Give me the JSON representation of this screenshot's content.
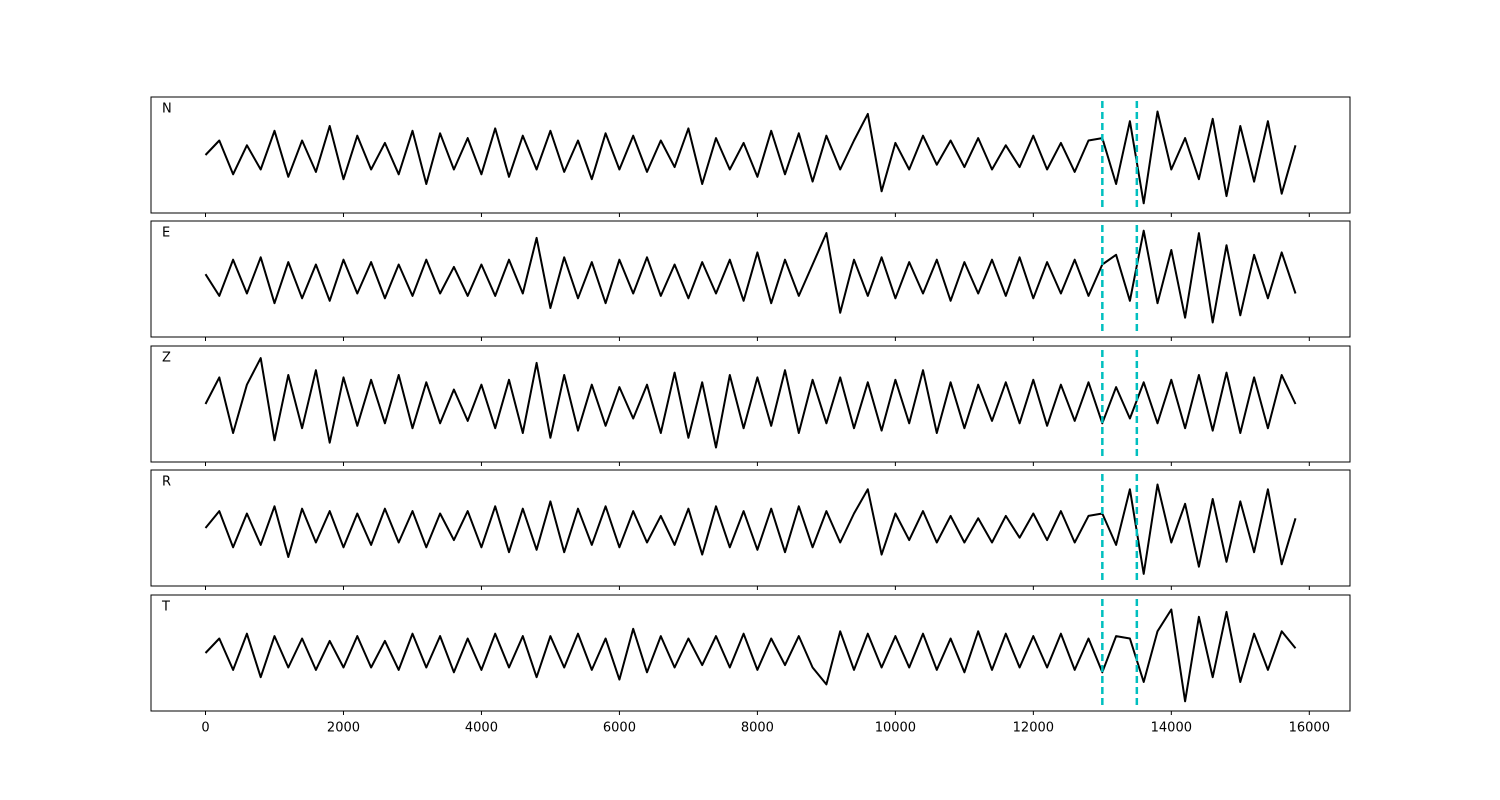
{
  "chart_data": {
    "type": "line",
    "x": [
      0,
      200,
      400,
      600,
      800,
      1000,
      1200,
      1400,
      1600,
      1800,
      2000,
      2200,
      2400,
      2600,
      2800,
      3000,
      3200,
      3400,
      3600,
      3800,
      4000,
      4200,
      4400,
      4600,
      4800,
      5000,
      5200,
      5400,
      5600,
      5800,
      6000,
      6200,
      6400,
      6600,
      6800,
      7000,
      7200,
      7400,
      7600,
      7800,
      8000,
      8200,
      8400,
      8600,
      8800,
      9000,
      9200,
      9400,
      9600,
      9800,
      10000,
      10200,
      10400,
      10600,
      10800,
      11000,
      11200,
      11400,
      11600,
      11800,
      12000,
      12200,
      12400,
      12600,
      12800,
      13000,
      13200,
      13400,
      13600,
      13800,
      14000,
      14200,
      14400,
      14600,
      14800,
      15000,
      15200,
      15400,
      15600,
      15800
    ],
    "series": [
      {
        "name": "N",
        "color": "#000000",
        "values": [
          0.0,
          0.3,
          -0.4,
          0.2,
          -0.3,
          0.5,
          -0.45,
          0.3,
          -0.35,
          0.6,
          -0.5,
          0.4,
          -0.3,
          0.25,
          -0.4,
          0.5,
          -0.6,
          0.45,
          -0.3,
          0.35,
          -0.4,
          0.55,
          -0.45,
          0.4,
          -0.3,
          0.5,
          -0.35,
          0.3,
          -0.5,
          0.45,
          -0.3,
          0.4,
          -0.35,
          0.3,
          -0.25,
          0.55,
          -0.6,
          0.35,
          -0.3,
          0.25,
          -0.45,
          0.5,
          -0.4,
          0.45,
          -0.55,
          0.4,
          -0.3,
          0.3,
          0.85,
          -0.75,
          0.25,
          -0.3,
          0.4,
          -0.2,
          0.3,
          -0.25,
          0.35,
          -0.3,
          0.2,
          -0.25,
          0.4,
          -0.3,
          0.25,
          -0.35,
          0.3,
          0.35,
          -0.6,
          0.7,
          -1.0,
          0.9,
          -0.3,
          0.35,
          -0.5,
          0.75,
          -0.85,
          0.6,
          -0.55,
          0.7,
          -0.8,
          0.2
        ]
      },
      {
        "name": "E",
        "color": "#000000",
        "values": [
          0.1,
          -0.35,
          0.4,
          -0.3,
          0.45,
          -0.5,
          0.35,
          -0.4,
          0.3,
          -0.45,
          0.4,
          -0.3,
          0.35,
          -0.4,
          0.3,
          -0.35,
          0.4,
          -0.3,
          0.25,
          -0.35,
          0.3,
          -0.35,
          0.4,
          -0.3,
          0.85,
          -0.6,
          0.45,
          -0.4,
          0.35,
          -0.5,
          0.4,
          -0.3,
          0.45,
          -0.35,
          0.3,
          -0.4,
          0.35,
          -0.3,
          0.4,
          -0.45,
          0.55,
          -0.5,
          0.4,
          -0.35,
          0.3,
          0.95,
          -0.7,
          0.4,
          -0.35,
          0.45,
          -0.4,
          0.35,
          -0.3,
          0.4,
          -0.45,
          0.35,
          -0.3,
          0.4,
          -0.35,
          0.45,
          -0.4,
          0.35,
          -0.3,
          0.4,
          -0.35,
          0.3,
          0.5,
          -0.45,
          1.0,
          -0.5,
          0.6,
          -0.8,
          0.95,
          -0.9,
          0.7,
          -0.75,
          0.5,
          -0.4,
          0.55,
          -0.3
        ]
      },
      {
        "name": "Z",
        "color": "#000000",
        "values": [
          0.0,
          0.55,
          -0.6,
          0.4,
          0.95,
          -0.75,
          0.6,
          -0.5,
          0.7,
          -0.8,
          0.55,
          -0.45,
          0.5,
          -0.4,
          0.6,
          -0.5,
          0.45,
          -0.4,
          0.3,
          -0.35,
          0.4,
          -0.5,
          0.5,
          -0.6,
          0.85,
          -0.7,
          0.6,
          -0.55,
          0.4,
          -0.45,
          0.35,
          -0.3,
          0.4,
          -0.6,
          0.65,
          -0.7,
          0.45,
          -0.9,
          0.6,
          -0.5,
          0.55,
          -0.45,
          0.7,
          -0.6,
          0.5,
          -0.4,
          0.55,
          -0.5,
          0.45,
          -0.55,
          0.5,
          -0.4,
          0.7,
          -0.6,
          0.45,
          -0.5,
          0.4,
          -0.35,
          0.45,
          -0.4,
          0.5,
          -0.45,
          0.4,
          -0.35,
          0.45,
          -0.4,
          0.35,
          -0.3,
          0.45,
          -0.4,
          0.5,
          -0.5,
          0.6,
          -0.55,
          0.65,
          -0.6,
          0.55,
          -0.5,
          0.6,
          0.0
        ]
      },
      {
        "name": "R",
        "color": "#000000",
        "values": [
          0.0,
          0.35,
          -0.4,
          0.3,
          -0.35,
          0.45,
          -0.6,
          0.4,
          -0.3,
          0.35,
          -0.4,
          0.3,
          -0.35,
          0.4,
          -0.3,
          0.35,
          -0.4,
          0.3,
          -0.25,
          0.35,
          -0.4,
          0.45,
          -0.5,
          0.4,
          -0.45,
          0.55,
          -0.5,
          0.4,
          -0.35,
          0.45,
          -0.4,
          0.35,
          -0.3,
          0.25,
          -0.35,
          0.4,
          -0.55,
          0.45,
          -0.4,
          0.35,
          -0.45,
          0.4,
          -0.5,
          0.45,
          -0.4,
          0.35,
          -0.3,
          0.3,
          0.8,
          -0.55,
          0.3,
          -0.25,
          0.35,
          -0.3,
          0.25,
          -0.3,
          0.2,
          -0.3,
          0.25,
          -0.2,
          0.3,
          -0.25,
          0.35,
          -0.3,
          0.25,
          0.3,
          -0.35,
          0.8,
          -0.95,
          0.9,
          -0.3,
          0.5,
          -0.8,
          0.6,
          -0.7,
          0.55,
          -0.5,
          0.8,
          -0.75,
          0.2
        ]
      },
      {
        "name": "T",
        "color": "#000000",
        "values": [
          0.0,
          0.3,
          -0.35,
          0.4,
          -0.5,
          0.35,
          -0.3,
          0.3,
          -0.35,
          0.25,
          -0.3,
          0.35,
          -0.3,
          0.25,
          -0.35,
          0.4,
          -0.3,
          0.35,
          -0.4,
          0.3,
          -0.35,
          0.4,
          -0.3,
          0.35,
          -0.5,
          0.35,
          -0.3,
          0.4,
          -0.35,
          0.3,
          -0.55,
          0.5,
          -0.4,
          0.35,
          -0.3,
          0.3,
          -0.25,
          0.35,
          -0.3,
          0.4,
          -0.35,
          0.3,
          -0.25,
          0.35,
          -0.3,
          -0.65,
          0.45,
          -0.35,
          0.4,
          -0.3,
          0.35,
          -0.3,
          0.4,
          -0.35,
          0.3,
          -0.4,
          0.45,
          -0.35,
          0.4,
          -0.3,
          0.35,
          -0.3,
          0.4,
          -0.35,
          0.3,
          -0.4,
          0.35,
          0.3,
          -0.6,
          0.45,
          0.9,
          -1.0,
          0.75,
          -0.5,
          0.85,
          -0.6,
          0.4,
          -0.35,
          0.45,
          0.1
        ]
      }
    ],
    "xlim": [
      -790,
      16590
    ],
    "xticks": [
      0,
      2000,
      4000,
      6000,
      8000,
      10000,
      12000,
      14000,
      16000
    ],
    "ylim": [
      -1.2,
      1.2
    ],
    "vlines": [
      13000,
      13500
    ],
    "vline_color": "#00bfbf",
    "grid": false
  }
}
